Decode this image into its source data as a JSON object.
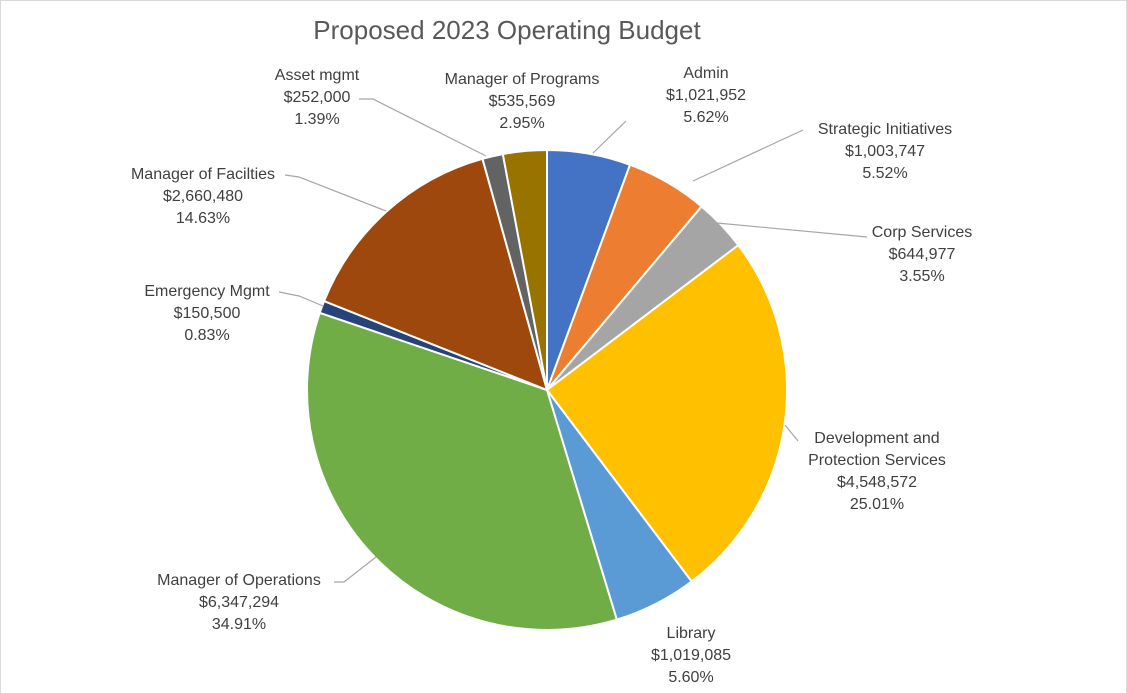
{
  "chart_data": {
    "type": "pie",
    "title": "Proposed 2023 Operating Budget",
    "slices": [
      {
        "name": "Admin",
        "value_label": "$1,021,952",
        "percent_label": "5.62%",
        "value": 1021952,
        "percent": 5.62,
        "color": "#4472c4"
      },
      {
        "name": "Strategic Initiatives",
        "value_label": "$1,003,747",
        "percent_label": "5.52%",
        "value": 1003747,
        "percent": 5.52,
        "color": "#ed7d31"
      },
      {
        "name": "Corp Services",
        "value_label": "$644,977",
        "percent_label": "3.55%",
        "value": 644977,
        "percent": 3.55,
        "color": "#a5a5a5"
      },
      {
        "name": "Development and Protection Services",
        "name_lines": [
          "Development and",
          "Protection Services"
        ],
        "value_label": "$4,548,572",
        "percent_label": "25.01%",
        "value": 4548572,
        "percent": 25.01,
        "color": "#ffc000"
      },
      {
        "name": "Library",
        "value_label": "$1,019,085",
        "percent_label": "5.60%",
        "value": 1019085,
        "percent": 5.6,
        "color": "#5b9bd5"
      },
      {
        "name": "Manager of Operations",
        "value_label": "$6,347,294",
        "percent_label": "34.91%",
        "value": 6347294,
        "percent": 34.91,
        "color": "#70ad47"
      },
      {
        "name": "Emergency Mgmt",
        "value_label": "$150,500",
        "percent_label": "0.83%",
        "value": 150500,
        "percent": 0.83,
        "color": "#264478"
      },
      {
        "name": "Manager of Facilties",
        "value_label": "$2,660,480",
        "percent_label": "14.63%",
        "value": 2660480,
        "percent": 14.63,
        "color": "#9e480e"
      },
      {
        "name": "Asset mgmt",
        "value_label": "$252,000",
        "percent_label": "1.39%",
        "value": 252000,
        "percent": 1.39,
        "color": "#636363"
      },
      {
        "name": "Manager of Programs",
        "value_label": "$535,569",
        "percent_label": "2.95%",
        "value": 535569,
        "percent": 2.95,
        "color": "#997300"
      }
    ],
    "legend": "none",
    "data_labels": "outside-with-leader-lines"
  }
}
